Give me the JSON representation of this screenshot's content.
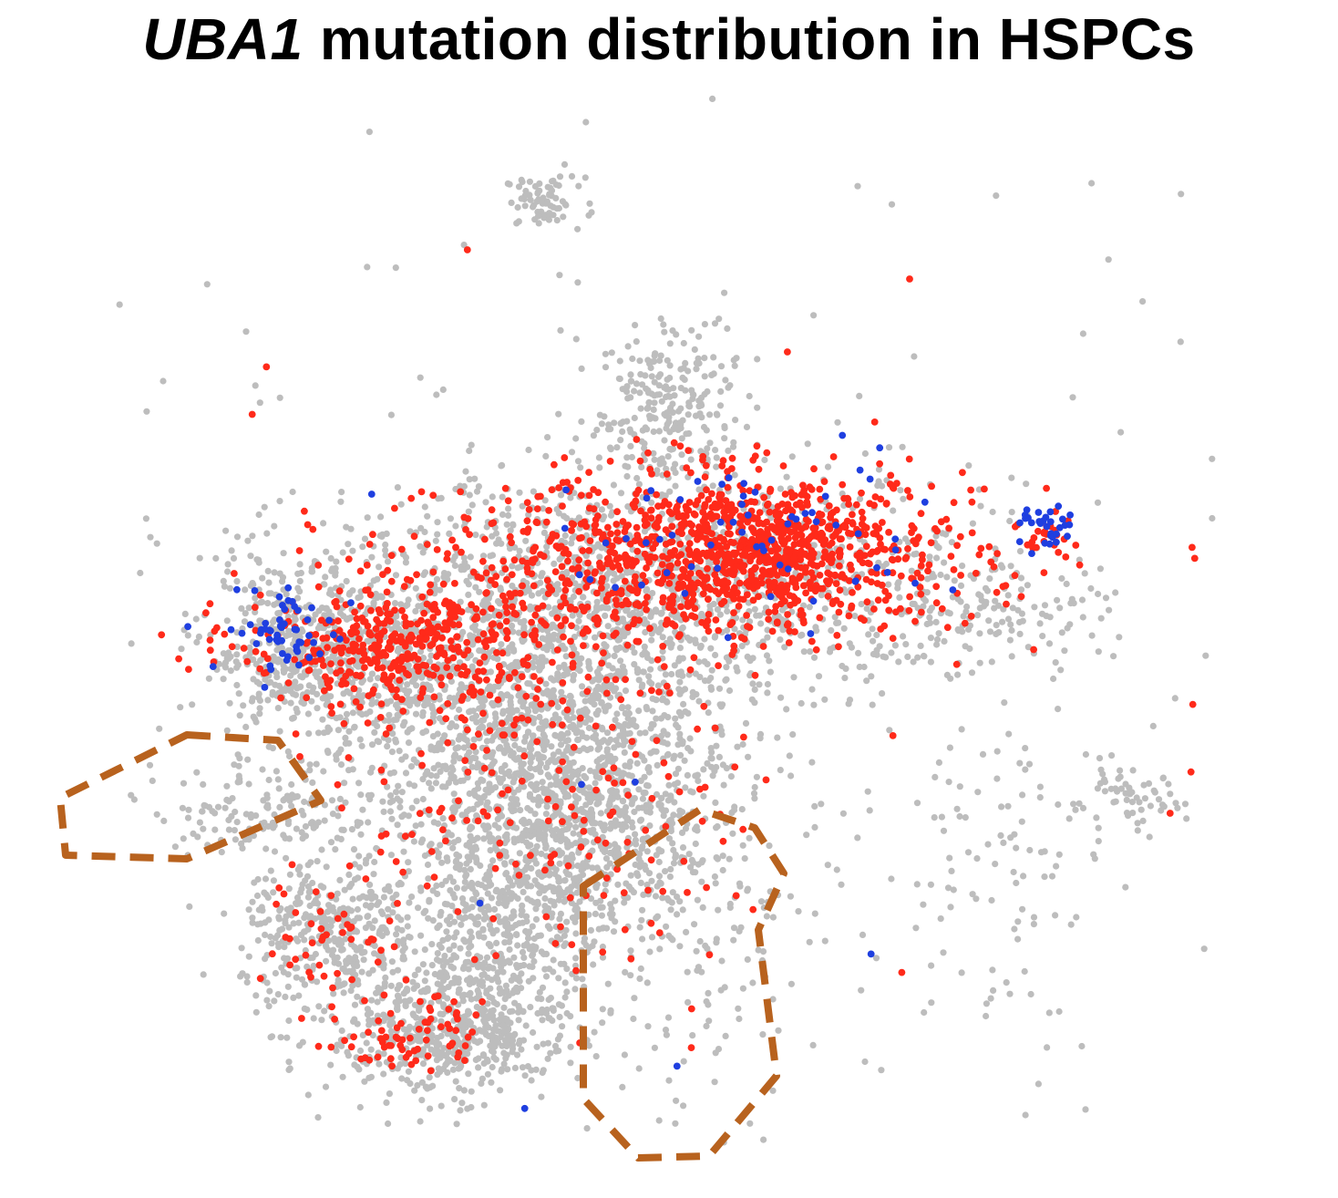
{
  "title": {
    "gene": "UBA1",
    "rest": " mutation distribution in HSPCs"
  },
  "chart_data": {
    "type": "scatter",
    "title": "UBA1 mutation distribution in HSPCs",
    "axes_visible": false,
    "grid": false,
    "legend": "none",
    "marker": "filled circle",
    "series": [
      {
        "color": "#bdbdbd",
        "clusters": [
          {
            "id": "top-sliver",
            "center": [
              0.38,
              0.895
            ],
            "spread": [
              0.018,
              0.012
            ],
            "n": 70
          },
          {
            "id": "upper-stalk",
            "center": [
              0.49,
              0.7
            ],
            "spread": [
              0.03,
              0.04
            ],
            "n": 240
          },
          {
            "id": "left-lobe",
            "center": [
              0.155,
              0.47
            ],
            "spread": [
              0.04,
              0.04
            ],
            "n": 360
          },
          {
            "id": "left-upper-arm",
            "center": [
              0.25,
              0.45
            ],
            "spread": [
              0.06,
              0.05
            ],
            "n": 420
          },
          {
            "id": "top-band",
            "center": [
              0.48,
              0.53
            ],
            "spread": [
              0.15,
              0.055
            ],
            "n": 1100
          },
          {
            "id": "central-body",
            "center": [
              0.39,
              0.39
            ],
            "spread": [
              0.08,
              0.09
            ],
            "n": 1400
          },
          {
            "id": "center-lower",
            "center": [
              0.39,
              0.3
            ],
            "spread": [
              0.06,
              0.06
            ],
            "n": 600
          },
          {
            "id": "left-outlined-group",
            "center": [
              0.13,
              0.32
            ],
            "spread": [
              0.05,
              0.02
            ],
            "n": 130
          },
          {
            "id": "bottom-left-lobe",
            "center": [
              0.19,
              0.2
            ],
            "spread": [
              0.04,
              0.04
            ],
            "n": 380
          },
          {
            "id": "bottom-center-lobe",
            "center": [
              0.29,
              0.11
            ],
            "spread": [
              0.05,
              0.03
            ],
            "n": 480
          },
          {
            "id": "lower-stalk",
            "center": [
              0.34,
              0.19
            ],
            "spread": [
              0.04,
              0.05
            ],
            "n": 380
          },
          {
            "id": "right-diagonal",
            "center": [
              0.78,
              0.51
            ],
            "spread": [
              0.05,
              0.03
            ],
            "n": 110
          },
          {
            "id": "right-scatter",
            "center": [
              0.78,
              0.27
            ],
            "spread": [
              0.05,
              0.08
            ],
            "n": 90
          },
          {
            "id": "bottom-outlined-scatter",
            "center": [
              0.52,
              0.17
            ],
            "spread": [
              0.05,
              0.07
            ],
            "n": 90
          },
          {
            "id": "far-right-small",
            "center": [
              0.9,
              0.33
            ],
            "spread": [
              0.025,
              0.015
            ],
            "n": 60
          },
          {
            "id": "background",
            "center": [
              0.5,
              0.45
            ],
            "spread": [
              0.28,
              0.26
            ],
            "n": 260
          }
        ]
      },
      {
        "color": "#ff2a1a",
        "clusters": [
          {
            "id": "top-band",
            "center": [
              0.53,
              0.555
            ],
            "spread": [
              0.12,
              0.04
            ],
            "n": 900
          },
          {
            "id": "top-band-right",
            "center": [
              0.58,
              0.575
            ],
            "spread": [
              0.05,
              0.03
            ],
            "n": 350
          },
          {
            "id": "left-arm",
            "center": [
              0.25,
              0.475
            ],
            "spread": [
              0.07,
              0.03
            ],
            "n": 420
          },
          {
            "id": "center-sparse",
            "center": [
              0.38,
              0.35
            ],
            "spread": [
              0.08,
              0.08
            ],
            "n": 180
          },
          {
            "id": "bottom-left-lobe",
            "center": [
              0.19,
              0.2
            ],
            "spread": [
              0.03,
              0.03
            ],
            "n": 45
          },
          {
            "id": "bottom-center-lobe",
            "center": [
              0.26,
              0.11
            ],
            "spread": [
              0.03,
              0.02
            ],
            "n": 70
          },
          {
            "id": "right-diagonal-tip",
            "center": [
              0.83,
              0.58
            ],
            "spread": [
              0.012,
              0.012
            ],
            "n": 25
          },
          {
            "id": "scattered",
            "center": [
              0.5,
              0.4
            ],
            "spread": [
              0.25,
              0.2
            ],
            "n": 45
          }
        ]
      },
      {
        "color": "#1f3fe0",
        "clusters": [
          {
            "id": "left-lobe",
            "center": [
              0.15,
              0.49
            ],
            "spread": [
              0.03,
              0.02
            ],
            "n": 55
          },
          {
            "id": "top-band",
            "center": [
              0.57,
              0.58
            ],
            "spread": [
              0.09,
              0.04
            ],
            "n": 60
          },
          {
            "id": "right-diagonal-tip",
            "center": [
              0.83,
              0.585
            ],
            "spread": [
              0.012,
              0.012
            ],
            "n": 30
          },
          {
            "id": "scattered",
            "center": [
              0.45,
              0.35
            ],
            "spread": [
              0.2,
              0.15
            ],
            "n": 10
          }
        ]
      }
    ],
    "annotations": [
      {
        "type": "dashed-outline",
        "color": "#b8621e",
        "region": "left-outlined-group"
      },
      {
        "type": "dashed-outline",
        "color": "#b8621e",
        "region": "bottom-outlined-scatter"
      }
    ]
  }
}
